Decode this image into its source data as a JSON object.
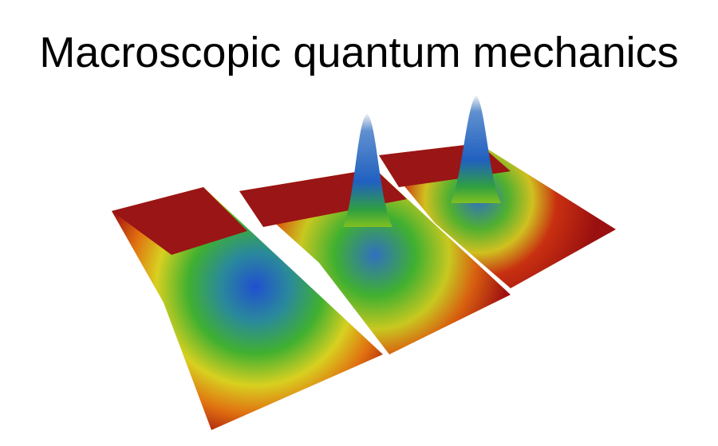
{
  "slide": {
    "title": "Macroscopic quantum mechanics"
  }
}
